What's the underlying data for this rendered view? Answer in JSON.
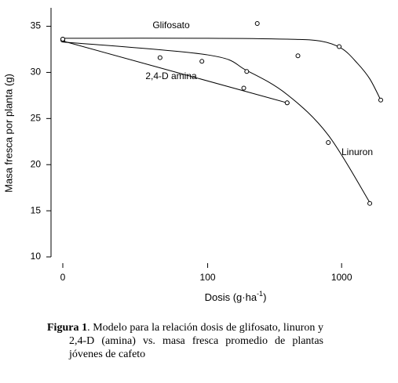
{
  "chart_data": {
    "type": "scatter",
    "ylabel": "Masa fresca por planta (g)",
    "xlabel": "Dosis (g·ha",
    "xlabel_sup": "-1",
    "xlabel_end": ")",
    "xscale": "symlog",
    "ylim": [
      10,
      37
    ],
    "yticks": [
      10,
      15,
      20,
      25,
      30,
      35
    ],
    "xticks": [
      0,
      100,
      1000
    ],
    "color": "#000000",
    "series": [
      {
        "name": "Glifosato",
        "x": [
          0,
          240,
          480,
          960,
          1920
        ],
        "values": [
          33.6,
          35.3,
          31.8,
          32.8,
          27.0
        ],
        "fit_x": [
          0,
          100,
          400,
          700,
          1000,
          1300,
          1600,
          1920
        ],
        "fit_values": [
          33.7,
          33.7,
          33.6,
          33.4,
          32.6,
          31.0,
          29.3,
          27.0
        ]
      },
      {
        "name": "Linuron",
        "x": [
          0,
          200,
          400,
          800,
          1600
        ],
        "values": [
          33.5,
          30.1,
          26.7,
          22.4,
          15.8
        ],
        "fit_x": [
          0,
          100,
          200,
          400,
          800,
          1600
        ],
        "fit_values": [
          33.3,
          31.9,
          30.2,
          27.6,
          23.2,
          15.9
        ]
      },
      {
        "name": "2,4-D amina",
        "x": [
          0,
          40,
          90,
          190,
          400
        ],
        "values": [
          33.6,
          31.6,
          31.2,
          28.3,
          26.7
        ],
        "fit_x": [
          0,
          400
        ],
        "fit_values": [
          33.4,
          26.7
        ]
      }
    ]
  },
  "caption": {
    "label": "Figura 1",
    "text": ". Modelo para la relación dosis de glifosato, linuron y 2,4-D (amina) vs. masa fresca promedio de plantas jóvenes de cafeto"
  }
}
